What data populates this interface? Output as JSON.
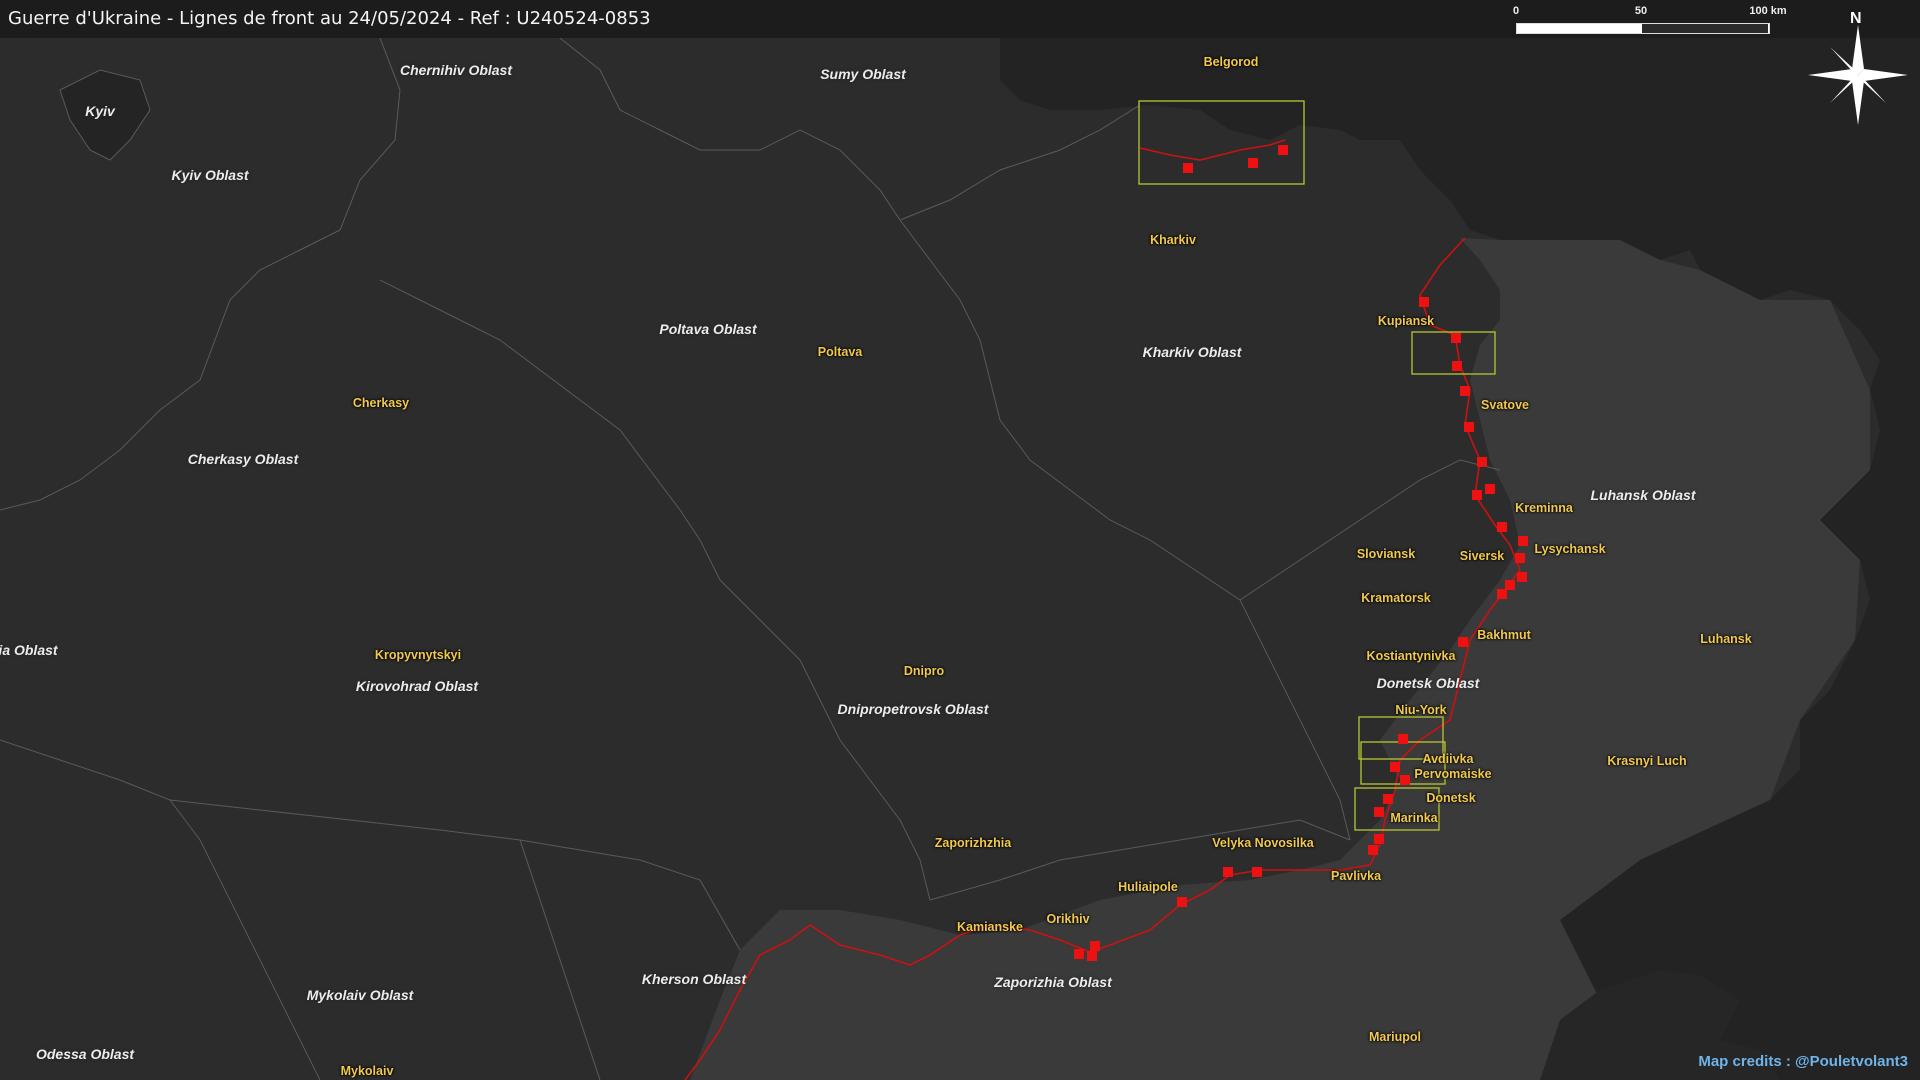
{
  "title": "Guerre d'Ukraine - Lignes de front au 24/05/2024 - Ref : U240524-0853",
  "credits": "Map credits : @Pouletvolant3",
  "compass_label": "N",
  "scale": {
    "ticks": [
      "0",
      "50",
      "100 km"
    ]
  },
  "colors": {
    "background": "#2c2c2c",
    "occupied": "#3b3b3b",
    "russia": "#222222",
    "front_line": "#d01010",
    "marker": "#ee1111",
    "highlight_box": "#b8c632",
    "city_label": "#f2c94c",
    "credits": "#6fb4e9"
  },
  "oblasts": [
    "Kyiv Oblast",
    "Chernihiv Oblast",
    "Sumy Oblast",
    "Poltava Oblast",
    "Kharkiv Oblast",
    "Cherkasy Oblast",
    "ia Oblast",
    "Kirovohrad Oblast",
    "Dnipropetrovsk Oblast",
    "Luhansk Oblast",
    "Donetsk Oblast",
    "Kherson Oblast",
    "Zaporizhia Oblast",
    "Mykolaiv Oblast",
    "Odessa Oblast"
  ],
  "kyiv_label": "Kyiv",
  "cities": [
    "Belgorod",
    "Kharkiv",
    "Kupiansk",
    "Svatove",
    "Kreminna",
    "Lysychansk",
    "Siversk",
    "Sloviansk",
    "Kramatorsk",
    "Bakhmut",
    "Kostiantynivka",
    "Niu-York",
    "Avdiivka",
    "Pervomaiske",
    "Donetsk",
    "Marinka",
    "Pavlivka",
    "Velyka Novosilka",
    "Huliaipole",
    "Orikhiv",
    "Kamianske",
    "Zaporizhzhia",
    "Dnipro",
    "Poltava",
    "Cherkasy",
    "Kropyvnytskyi",
    "Mykolaiv",
    "Mariupol",
    "Luhansk",
    "Krasnyi Luch"
  ]
}
